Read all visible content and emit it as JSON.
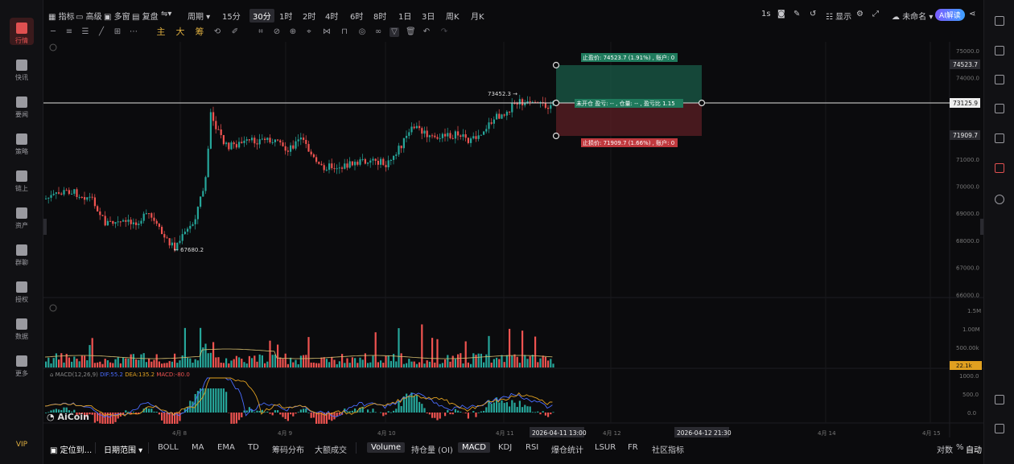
{
  "sidebar": {
    "items": [
      {
        "label": "行情",
        "icon": "chart-bars-icon",
        "active": true
      },
      {
        "label": "快讯",
        "icon": "newsflash-icon"
      },
      {
        "label": "要闻",
        "icon": "news-icon"
      },
      {
        "label": "策略",
        "icon": "robot-icon"
      },
      {
        "label": "链上",
        "icon": "chain-icon"
      },
      {
        "label": "资产",
        "icon": "wallet-icon"
      },
      {
        "label": "群聊",
        "icon": "chat-icon"
      },
      {
        "label": "授权",
        "icon": "authorize-icon"
      },
      {
        "label": "数据",
        "icon": "data-icon"
      },
      {
        "label": "更多",
        "icon": "more-grid-icon"
      }
    ],
    "vip": "VIP"
  },
  "toolbar": {
    "indicators": "指标",
    "advanced": "高级",
    "multi_window": "多窗",
    "replay": "复盘",
    "period": "周期",
    "intervals": [
      "15分",
      "30分",
      "1时",
      "2时",
      "4时",
      "6时",
      "8时",
      "1日",
      "3日",
      "周K",
      "月K"
    ],
    "selected_interval": "30分",
    "right": {
      "sec": "1s",
      "display": "显示",
      "layout_name": "未命名",
      "ai": "AI解读"
    }
  },
  "drawing_tools": {
    "cn": [
      "主",
      "大",
      "筹"
    ]
  },
  "chart": {
    "price_axis": [
      "75000.0",
      "74000.0",
      "73000.0",
      "72000.0",
      "71000.0",
      "70000.0",
      "69000.0",
      "68000.0",
      "67000.0",
      "66000.0"
    ],
    "price_tags": {
      "take_profit": "74523.7",
      "current": "73125.9",
      "stop_loss": "71909.7"
    },
    "labels": {
      "take_profit": "止盈价: 74523.7 (1.91%) , 账户: 0",
      "position": "未开仓 盈亏: -- , 仓量: -- , 盈亏比 1.15",
      "stop_loss": "止损价: 71909.7 (1.66%) , 账户: 0",
      "high": "73452.3",
      "low": "67680.2"
    },
    "volume_axis": [
      "1.5M",
      "1.00M",
      "500.00k"
    ],
    "volume_tag": "22.1k",
    "macd_axis": [
      "1000.0",
      "500.0",
      "0.0"
    ],
    "macd_legend": {
      "name": "MACD(12,26,9)",
      "dif": "DIF:55.2",
      "dea": "DEA:135.2",
      "macd": "MACD:-80.0"
    },
    "time_axis": [
      "4月 8",
      "4月 9",
      "4月 10",
      "4月 11",
      "4月 12",
      "4月 14",
      "4月 15"
    ],
    "time_tags": [
      "2026-04-11 13:00",
      "2026-04-12 21:30"
    ],
    "watermark": "AiCoin",
    "colors": {
      "up": "#26a69a",
      "down": "#ef5350",
      "tp_zone": "#1a5c48",
      "sl_zone": "#5c1f24"
    }
  },
  "bottom": {
    "locate": "定位到...",
    "date_range": "日期范围",
    "indicators": [
      "BOLL",
      "MA",
      "EMA",
      "TD",
      "筹码分布",
      "大额成交"
    ],
    "sub_indicators": [
      "Volume",
      "持仓量 (OI)",
      "MACD",
      "KDJ",
      "RSI",
      "爆仓统计",
      "LSUR",
      "FR",
      "社区指标"
    ],
    "selected": [
      "Volume",
      "MACD"
    ],
    "right": [
      "对数",
      "%",
      "自动"
    ]
  }
}
